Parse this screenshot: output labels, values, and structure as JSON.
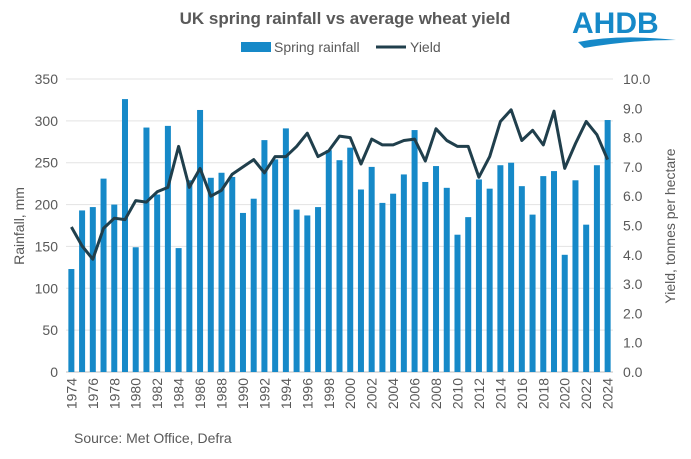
{
  "logo": {
    "text": "AHDB",
    "color": "#1689C8"
  },
  "source": "Source: Met Office, Defra",
  "chart_data": {
    "type": "bar+line",
    "title": "UK spring rainfall vs average wheat yield",
    "ylabel": "Rainfall, mm",
    "y2label": "Yield, tonnes per hectare",
    "ylim": [
      0,
      350
    ],
    "y2lim": [
      0,
      10
    ],
    "yticks": [
      "0",
      "50",
      "100",
      "150",
      "200",
      "250",
      "300",
      "350"
    ],
    "y2ticks": [
      "0.0",
      "1.0",
      "2.0",
      "3.0",
      "4.0",
      "5.0",
      "6.0",
      "7.0",
      "8.0",
      "9.0",
      "10.0"
    ],
    "grid": true,
    "legend": "top",
    "x": [
      1974,
      1975,
      1976,
      1977,
      1978,
      1979,
      1980,
      1981,
      1982,
      1983,
      1984,
      1985,
      1986,
      1987,
      1988,
      1989,
      1990,
      1991,
      1992,
      1993,
      1994,
      1995,
      1996,
      1997,
      1998,
      1999,
      2000,
      2001,
      2002,
      2003,
      2004,
      2005,
      2006,
      2007,
      2008,
      2009,
      2010,
      2011,
      2012,
      2013,
      2014,
      2015,
      2016,
      2017,
      2018,
      2019,
      2020,
      2021,
      2022,
      2023,
      2024
    ],
    "series": [
      {
        "name": "Spring rainfall",
        "type": "bar",
        "axis": "left",
        "color": "#1689C8",
        "values": [
          123,
          193,
          197,
          231,
          200,
          326,
          149,
          292,
          212,
          294,
          148,
          229,
          313,
          232,
          238,
          233,
          190,
          207,
          277,
          254,
          291,
          194,
          187,
          197,
          265,
          253,
          268,
          218,
          245,
          202,
          213,
          236,
          289,
          227,
          246,
          220,
          164,
          185,
          230,
          219,
          247,
          250,
          222,
          188,
          234,
          240,
          140,
          229,
          176,
          247,
          301
        ]
      },
      {
        "name": "Yield",
        "type": "line",
        "axis": "right",
        "color": "#203F4C",
        "values": [
          4.95,
          4.3,
          3.85,
          4.9,
          5.25,
          5.2,
          5.85,
          5.8,
          6.15,
          6.3,
          7.7,
          6.3,
          6.95,
          6.0,
          6.2,
          6.75,
          7.0,
          7.25,
          6.8,
          7.35,
          7.35,
          7.7,
          8.15,
          7.35,
          7.55,
          8.05,
          8.0,
          7.1,
          7.95,
          7.75,
          7.75,
          7.9,
          7.95,
          7.2,
          8.3,
          7.9,
          7.7,
          7.7,
          6.65,
          7.35,
          8.55,
          8.95,
          7.9,
          8.25,
          7.75,
          8.9,
          6.95,
          7.8,
          8.55,
          8.1,
          7.25
        ]
      }
    ]
  }
}
